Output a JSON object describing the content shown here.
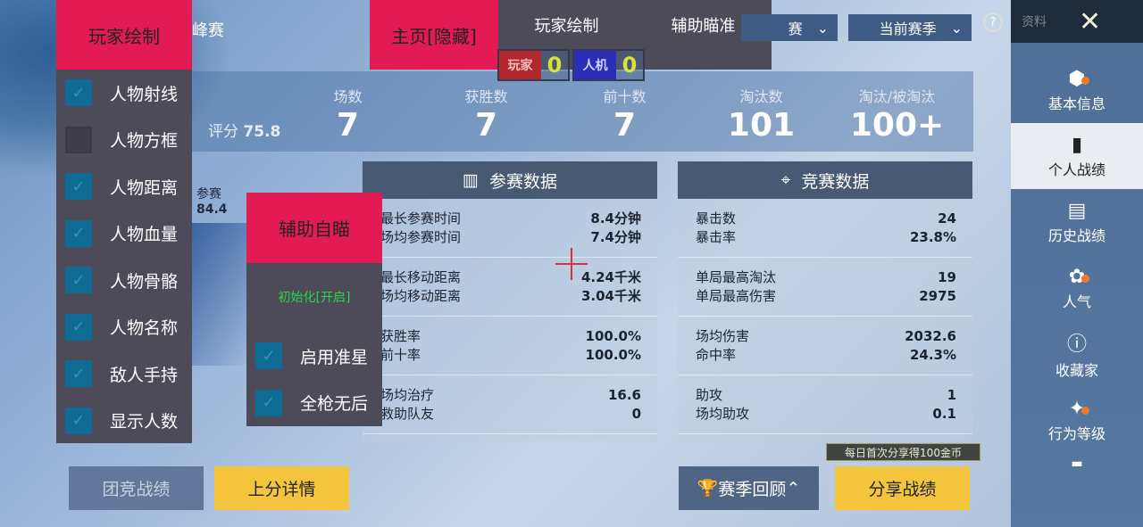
{
  "left_menu": {
    "title": "玩家绘制",
    "items": [
      {
        "label": "人物射线",
        "checked": true
      },
      {
        "label": "人物方框",
        "checked": false
      },
      {
        "label": "人物距离",
        "checked": true
      },
      {
        "label": "人物血量",
        "checked": true
      },
      {
        "label": "人物骨骼",
        "checked": true
      },
      {
        "label": "人物名称",
        "checked": true
      },
      {
        "label": "敌人手持",
        "checked": true
      },
      {
        "label": "显示人数",
        "checked": true
      }
    ]
  },
  "header_partial": "峰赛",
  "top_tabs": {
    "main": "主页[隐藏]",
    "tabs": [
      "玩家绘制",
      "辅助瞄准"
    ]
  },
  "counters": {
    "player": {
      "label": "玩家",
      "value": "0",
      "color": "#b3282d"
    },
    "bot": {
      "label": "人机",
      "value": "0",
      "color": "#2a2fb8"
    }
  },
  "filters": {
    "mode": "赛",
    "season": "当前赛季"
  },
  "help_icon": "?",
  "sidebar": {
    "title": "资料",
    "items": [
      {
        "label": "基本信息",
        "icon": "user-badge-icon",
        "dot": true
      },
      {
        "label": "个人战绩",
        "icon": "chart-doc-icon",
        "active": true
      },
      {
        "label": "历史战绩",
        "icon": "history-doc-icon"
      },
      {
        "label": "人气",
        "icon": "rose-icon",
        "dot": true
      },
      {
        "label": "收藏家",
        "icon": "collector-badge-icon"
      },
      {
        "label": "行为等级",
        "icon": "behavior-badge-icon",
        "dot": true
      }
    ]
  },
  "summary": {
    "score_label": "评分",
    "score": "75.8",
    "stats": [
      {
        "label": "场数",
        "value": "7"
      },
      {
        "label": "获胜数",
        "value": "7"
      },
      {
        "label": "前十数",
        "value": "7"
      },
      {
        "label": "淘汰数",
        "value": "101"
      },
      {
        "label": "淘汰/被淘汰",
        "value": "100+"
      }
    ]
  },
  "radar": {
    "label": "参赛",
    "value": "84.4"
  },
  "participation": {
    "title": "参赛数据",
    "groups": [
      [
        [
          "最长参赛时间",
          "8.4分钟"
        ],
        [
          "场均参赛时间",
          "7.4分钟"
        ]
      ],
      [
        [
          "最长移动距离",
          "4.24千米"
        ],
        [
          "场均移动距离",
          "3.04千米"
        ]
      ],
      [
        [
          "获胜率",
          "100.0%"
        ],
        [
          "前十率",
          "100.0%"
        ]
      ],
      [
        [
          "场均治疗",
          "16.6"
        ],
        [
          "救助队友",
          "0"
        ]
      ]
    ]
  },
  "competition": {
    "title": "竞赛数据",
    "groups": [
      [
        [
          "暴击数",
          "24"
        ],
        [
          "暴击率",
          "23.8%"
        ]
      ],
      [
        [
          "单局最高淘汰",
          "19"
        ],
        [
          "单局最高伤害",
          "2975"
        ]
      ],
      [
        [
          "场均伤害",
          "2032.6"
        ],
        [
          "命中率",
          "24.3%"
        ]
      ],
      [
        [
          "助攻",
          "1"
        ],
        [
          "场均助攻",
          "0.1"
        ]
      ]
    ]
  },
  "aim_panel": {
    "title": "辅助自瞄",
    "status": "初始化[开启]",
    "items": [
      {
        "label": "启用准星",
        "checked": true
      },
      {
        "label": "全枪无后",
        "checked": true
      }
    ]
  },
  "bottom": {
    "team": "团竞战绩",
    "rank": "上分详情",
    "season_review": "赛季回顾",
    "share": "分享战绩",
    "share_tip": "每日首次分享得100金币"
  },
  "colors": {
    "accent": "#e21b55",
    "panel": "#4d4b57",
    "checkbox": "#0e6b93",
    "yellow": "#f4c53c"
  }
}
